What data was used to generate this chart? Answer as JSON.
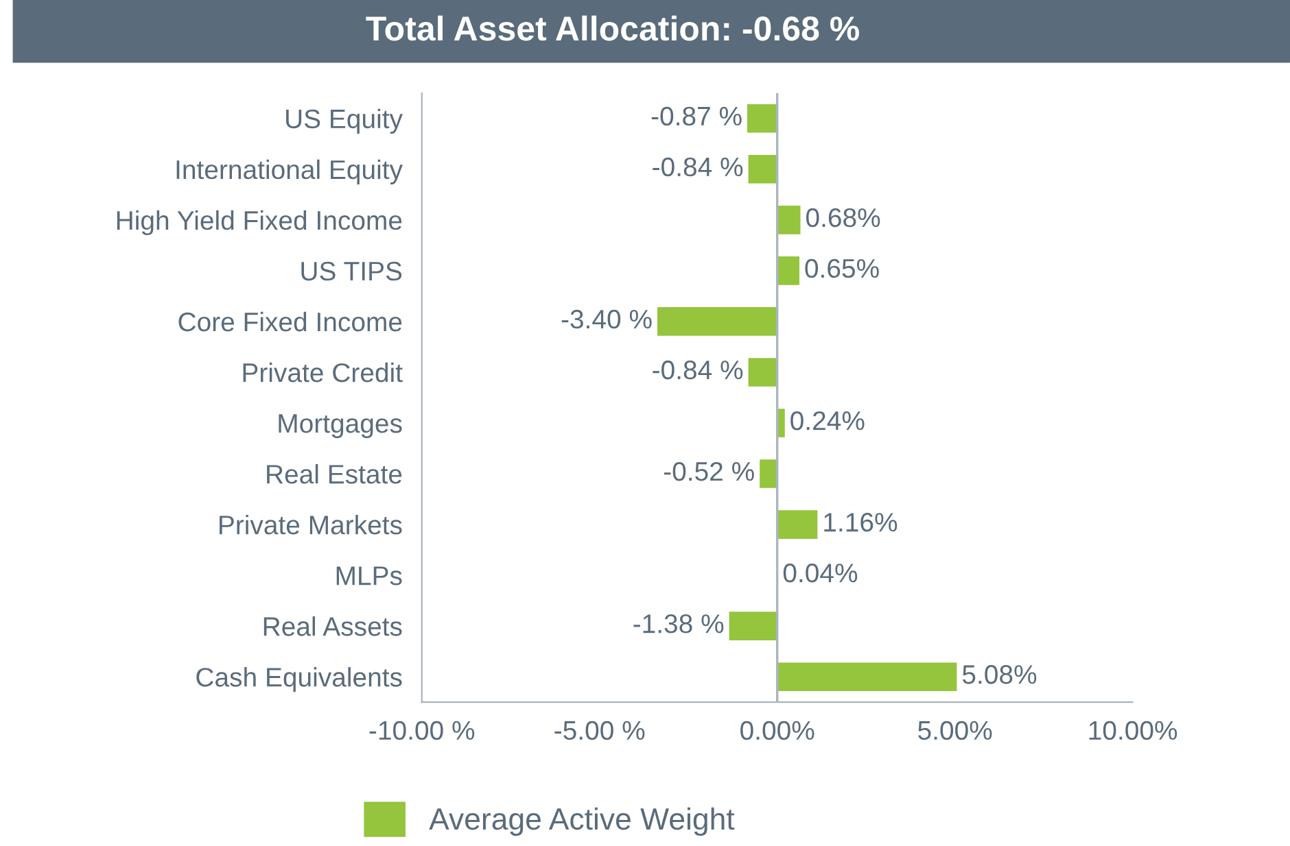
{
  "chart_data": {
    "type": "bar",
    "orientation": "horizontal",
    "title": "Total Asset Allocation: -0.68 %",
    "categories": [
      "US Equity",
      "International Equity",
      "High Yield Fixed Income",
      "US TIPS",
      "Core Fixed Income",
      "Private Credit",
      "Mortgages",
      "Real Estate",
      "Private Markets",
      "MLPs",
      "Real Assets",
      "Cash Equivalents"
    ],
    "series": [
      {
        "name": "Average Active Weight",
        "color": "#95c43d",
        "values": [
          -0.87,
          -0.84,
          0.68,
          0.65,
          -3.4,
          -0.84,
          0.24,
          -0.52,
          1.16,
          0.04,
          -1.38,
          5.08
        ],
        "value_labels": [
          "-0.87 %",
          "-0.84 %",
          "0.68%",
          "0.65%",
          "-3.40 %",
          "-0.84 %",
          "0.24%",
          "-0.52 %",
          "1.16%",
          "0.04%",
          "-1.38 %",
          "5.08%"
        ]
      }
    ],
    "xlim": [
      -10,
      10
    ],
    "xticks": [
      {
        "value": -10,
        "label": "-10.00 %"
      },
      {
        "value": -5,
        "label": "-5.00 %"
      },
      {
        "value": 0,
        "label": "0.00%"
      },
      {
        "value": 5,
        "label": "5.00%"
      },
      {
        "value": 10,
        "label": "10.00%"
      }
    ],
    "ref_lines": [
      {
        "axis": "x",
        "value": 0,
        "color": "#a9b4bf"
      }
    ],
    "grid": false,
    "legend": "bottom"
  }
}
